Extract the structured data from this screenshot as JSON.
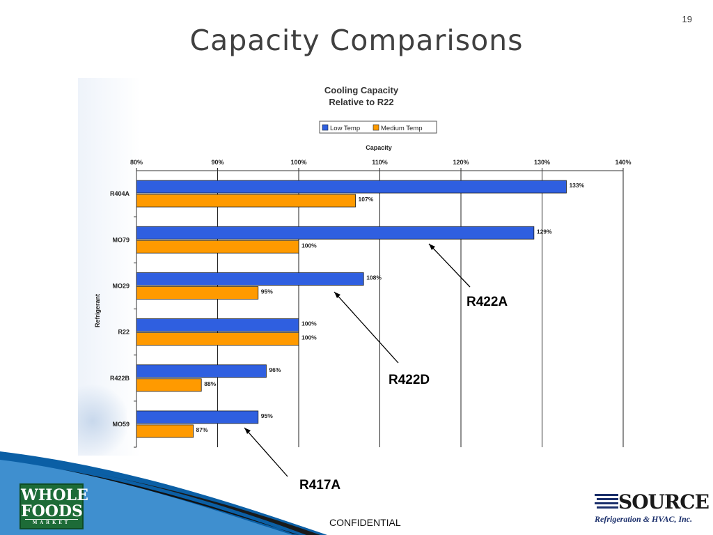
{
  "slide": {
    "title": "Capacity Comparisons",
    "number": "19",
    "footer": "CONFIDENTIAL",
    "logos": {
      "whole_foods": [
        "WHOLE",
        "FOODS",
        "MARKET"
      ],
      "source_name": "SOURCE",
      "source_sub": "Refrigeration & HVAC, Inc."
    }
  },
  "chart_data": {
    "type": "bar",
    "orientation": "horizontal",
    "title": [
      "Cooling Capacity",
      "Relative to R22"
    ],
    "xlabel": "Capacity",
    "ylabel": "Refrigerant",
    "xlim": [
      80,
      140
    ],
    "xticks": [
      80,
      90,
      100,
      110,
      120,
      130,
      140
    ],
    "xtick_labels": [
      "80%",
      "90%",
      "100%",
      "110%",
      "120%",
      "130%",
      "140%"
    ],
    "categories": [
      "R404A",
      "MO79",
      "MO29",
      "R22",
      "R422B",
      "MO59"
    ],
    "series": [
      {
        "name": "Low Temp",
        "color": "#2f5fe0",
        "values": [
          133,
          129,
          108,
          100,
          96,
          95
        ],
        "labels": [
          "133%",
          "129%",
          "108%",
          "100%",
          "96%",
          "95%"
        ]
      },
      {
        "name": "Medium Temp",
        "color": "#ff9a00",
        "values": [
          107,
          100,
          95,
          100,
          88,
          87
        ],
        "labels": [
          "107%",
          "100%",
          "95%",
          "100%",
          "88%",
          "87%"
        ]
      }
    ],
    "legend_position": "top",
    "grid": "vertical",
    "annotations": [
      {
        "text": "R422A",
        "points_to": "MO79"
      },
      {
        "text": "R422D",
        "points_to": "MO29"
      },
      {
        "text": "R417A",
        "points_to": "MO59"
      }
    ]
  }
}
